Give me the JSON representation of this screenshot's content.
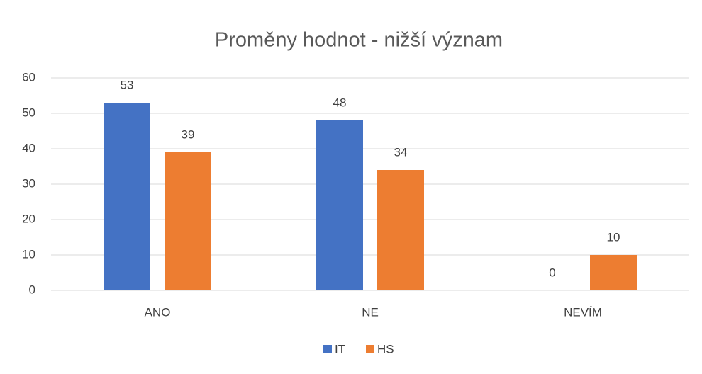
{
  "chart_data": {
    "type": "bar",
    "title": "Proměny hodnot - nižší význam",
    "categories": [
      "ANO",
      "NE",
      "NEVÍM"
    ],
    "series": [
      {
        "name": "IT",
        "color": "#4472c4",
        "values": [
          53,
          48,
          0
        ]
      },
      {
        "name": "HS",
        "color": "#ed7d31",
        "values": [
          39,
          34,
          10
        ]
      }
    ],
    "ylim": [
      0,
      60
    ],
    "yticks": [
      0,
      10,
      20,
      30,
      40,
      50,
      60
    ],
    "grid": true,
    "legend": "bottom"
  }
}
